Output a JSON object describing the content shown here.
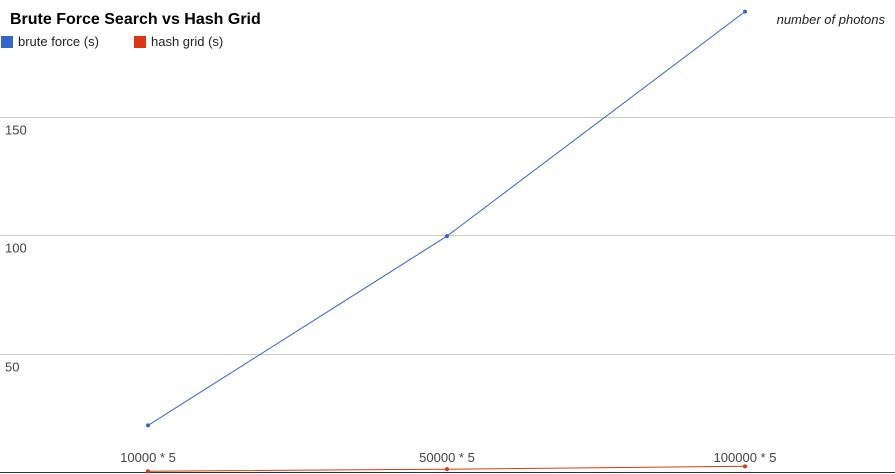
{
  "chart_data": {
    "type": "line",
    "title": "Brute Force Search vs Hash Grid",
    "xlabel": "number of photons",
    "ylabel": "",
    "categories": [
      "10000 * 5",
      "50000 * 5",
      "100000 * 5"
    ],
    "series": [
      {
        "name": "brute force (s)",
        "values": [
          19.7,
          99.7,
          194.6
        ],
        "color": "#3366cc"
      },
      {
        "name": "hash grid (s)",
        "values": [
          0.3,
          1.2,
          2.4
        ],
        "color": "#dc3912"
      }
    ],
    "ylim": [
      0,
      199.5
    ],
    "yticks": [
      50,
      100,
      150
    ],
    "grid": true,
    "legend_position": "top-left"
  }
}
